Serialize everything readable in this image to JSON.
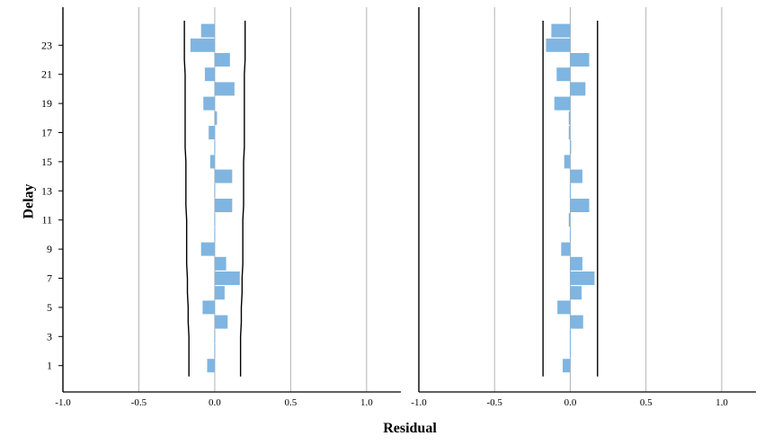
{
  "chart_data": {
    "type": "bar",
    "orientation": "horizontal",
    "ylabel": "Delay",
    "xlabel": "Residual",
    "xlim": [
      -1.0,
      1.0
    ],
    "x_ticks": [
      "-1.0",
      "-0.5",
      "0.0",
      "0.5",
      "1.0"
    ],
    "y_ticks": [
      "1",
      "3",
      "5",
      "7",
      "9",
      "11",
      "13",
      "15",
      "17",
      "19",
      "21",
      "23"
    ],
    "lags": [
      1,
      2,
      3,
      4,
      5,
      6,
      7,
      8,
      9,
      10,
      11,
      12,
      13,
      14,
      15,
      16,
      17,
      18,
      19,
      20,
      21,
      22,
      23,
      24
    ],
    "grid_x": true,
    "bar_color": "#7fb5e0",
    "panels": [
      {
        "values": [
          -0.05,
          0.0,
          0.0,
          0.085,
          -0.08,
          0.065,
          0.165,
          0.075,
          -0.09,
          0.0,
          0.0,
          0.115,
          0.0,
          0.115,
          -0.03,
          0.0,
          -0.04,
          0.015,
          -0.075,
          0.13,
          -0.065,
          0.1,
          -0.16,
          -0.09
        ],
        "limits": [
          0.17,
          0.17,
          0.17,
          0.175,
          0.175,
          0.18,
          0.18,
          0.185,
          0.185,
          0.185,
          0.185,
          0.19,
          0.19,
          0.19,
          0.19,
          0.195,
          0.195,
          0.195,
          0.195,
          0.195,
          0.195,
          0.2,
          0.2,
          0.2
        ]
      },
      {
        "values": [
          -0.05,
          0.0,
          0.0,
          0.085,
          -0.085,
          0.075,
          0.16,
          0.08,
          -0.06,
          0.0,
          -0.01,
          0.125,
          0.0,
          0.08,
          -0.04,
          0.005,
          -0.01,
          -0.01,
          -0.105,
          0.1,
          -0.09,
          0.125,
          -0.16,
          -0.125
        ],
        "limits": [
          0.18,
          0.18,
          0.18,
          0.18,
          0.18,
          0.18,
          0.18,
          0.18,
          0.18,
          0.18,
          0.18,
          0.18,
          0.18,
          0.18,
          0.18,
          0.18,
          0.18,
          0.18,
          0.18,
          0.18,
          0.18,
          0.18,
          0.18,
          0.18
        ]
      }
    ]
  }
}
